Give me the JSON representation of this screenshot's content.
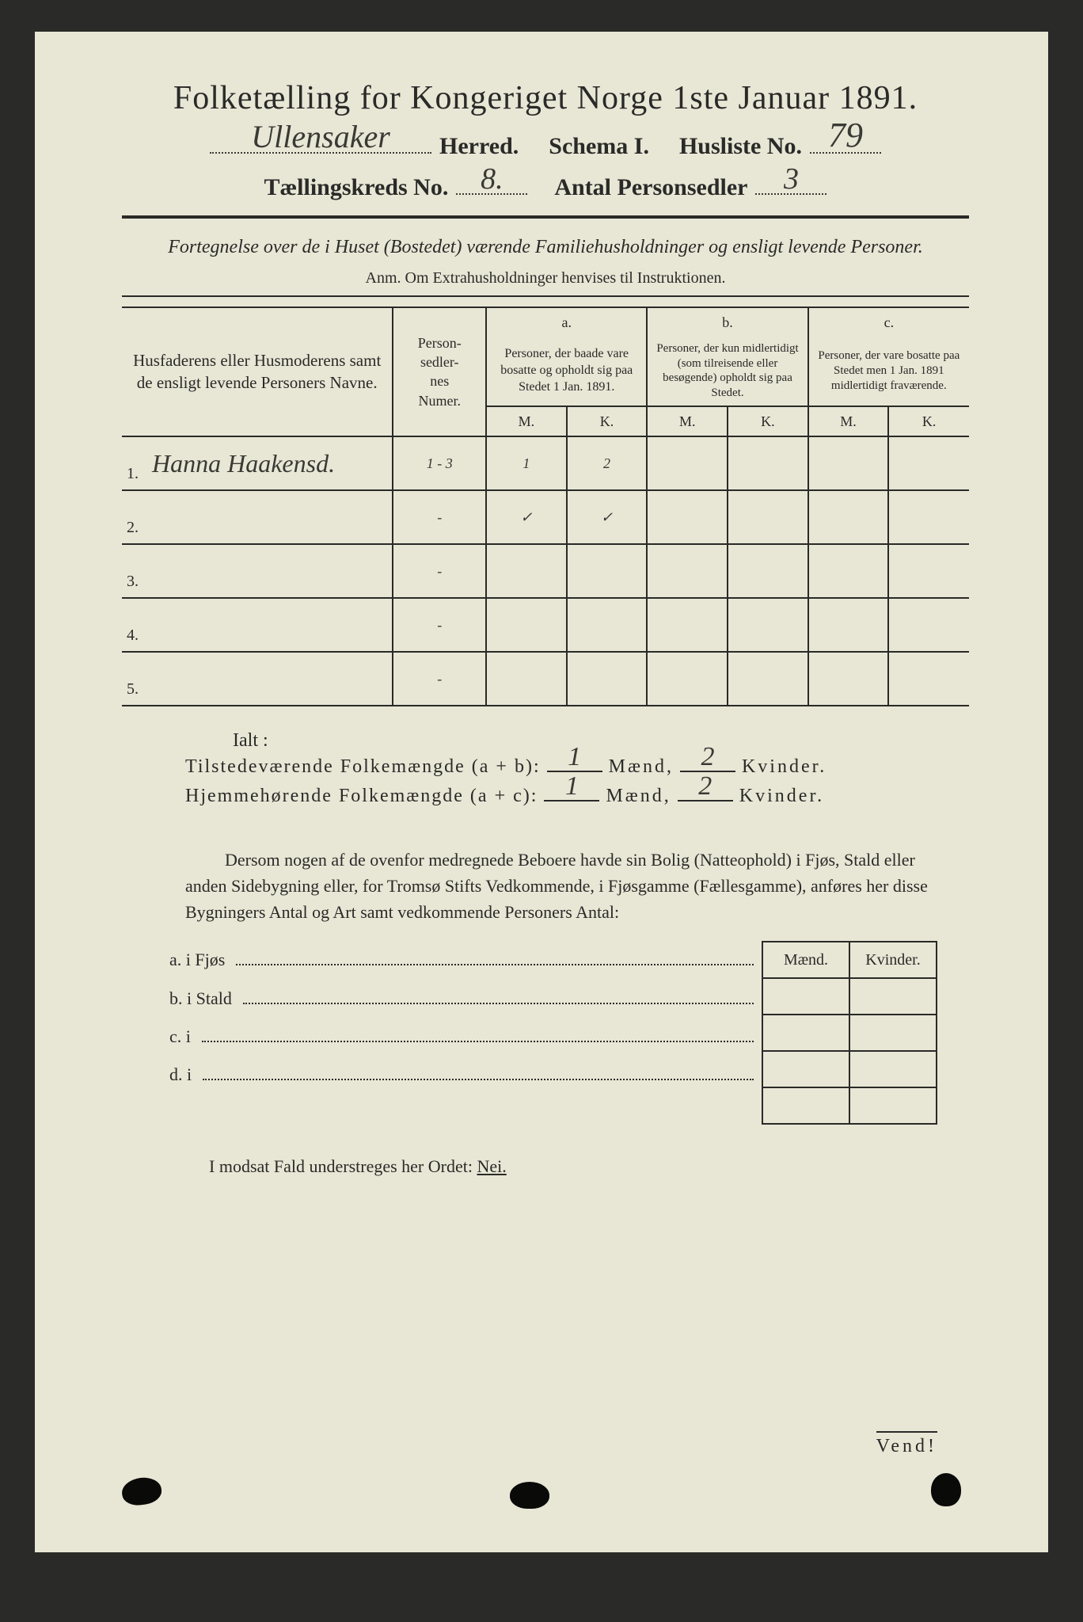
{
  "title": "Folketælling for Kongeriget Norge 1ste Januar 1891.",
  "header": {
    "herred_hw": "Ullensaker",
    "herred_label": "Herred.",
    "schema_label": "Schema I.",
    "husliste_label": "Husliste No.",
    "husliste_hw": "79",
    "kreds_label": "Tællingskreds No.",
    "kreds_hw": "8.",
    "antal_label": "Antal Personsedler",
    "antal_hw": "3"
  },
  "subtitle": "Fortegnelse over de i Huset (Bostedet) værende Familiehusholdninger og ensligt levende Personer.",
  "anm": "Anm.  Om Extrahusholdninger henvises til Instruktionen.",
  "table": {
    "head_name": "Husfaderens eller Husmoderens samt de ensligt levende Personers Navne.",
    "head_num": "Person-\nsedler-\nnes\nNumer.",
    "head_a_top": "a.",
    "head_a": "Personer, der baade vare bosatte og opholdt sig paa Stedet 1 Jan. 1891.",
    "head_b_top": "b.",
    "head_b": "Personer, der kun midlertidigt (som tilreisende eller besøgende) opholdt sig paa Stedet.",
    "head_c_top": "c.",
    "head_c": "Personer, der vare bosatte paa Stedet men 1 Jan. 1891 midlertidigt fraværende.",
    "M": "M.",
    "K": "K.",
    "rows": [
      {
        "n": "1.",
        "name_hw": "Hanna Haakensd.",
        "num_hw": "1 - 3",
        "aM": "1",
        "aK": "2",
        "bM": "",
        "bK": "",
        "cM": "",
        "cK": ""
      },
      {
        "n": "2.",
        "name_hw": "",
        "num_hw": "-",
        "aM": "✓",
        "aK": "✓",
        "bM": "",
        "bK": "",
        "cM": "",
        "cK": ""
      },
      {
        "n": "3.",
        "name_hw": "",
        "num_hw": "-",
        "aM": "",
        "aK": "",
        "bM": "",
        "bK": "",
        "cM": "",
        "cK": ""
      },
      {
        "n": "4.",
        "name_hw": "",
        "num_hw": "-",
        "aM": "",
        "aK": "",
        "bM": "",
        "bK": "",
        "cM": "",
        "cK": ""
      },
      {
        "n": "5.",
        "name_hw": "",
        "num_hw": "-",
        "aM": "",
        "aK": "",
        "bM": "",
        "bK": "",
        "cM": "",
        "cK": ""
      }
    ]
  },
  "ialt": "Ialt :",
  "sums": {
    "tilstede_label": "Tilstedeværende Folkemængde (a + b):",
    "tilstede_m": "1",
    "tilstede_k": "2",
    "hjemme_label": "Hjemmehørende Folkemængde (a + c):",
    "hjemme_m": "1",
    "hjemme_k": "2",
    "maend": "Mænd,",
    "kvinder": "Kvinder."
  },
  "para": "Dersom nogen af de ovenfor medregnede Beboere havde sin Bolig (Natteophold) i Fjøs, Stald eller anden Sidebygning eller, for Tromsø Stifts Vedkommende, i Fjøsgamme (Fællesgamme), anføres her disse Bygningers Antal og Art samt vedkommende Personers Antal:",
  "side": {
    "a": "a.  i     Fjøs",
    "b": "b.  i     Stald",
    "c": "c.  i",
    "d": "d.  i",
    "maend": "Mænd.",
    "kvinder": "Kvinder."
  },
  "nei_line": "I modsat Fald understreges her Ordet: ",
  "nei_word": "Nei.",
  "vend": "Vend!",
  "colors": {
    "paper": "#e8e6d5",
    "ink": "#2a2a28",
    "bg": "#2a2a28"
  }
}
